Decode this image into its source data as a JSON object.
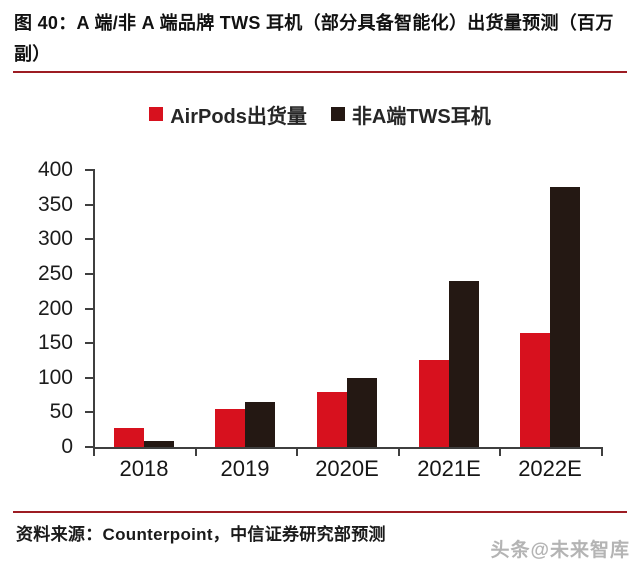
{
  "figure": {
    "title": "图 40：A 端/非 A 端品牌 TWS 耳机（部分具备智能化）出货量预测（百万副）",
    "source": "资料来源：Counterpoint，中信证券研究部预测",
    "watermark": "头条@未来智库",
    "accent_line_color": "#9d1c23"
  },
  "chart_data": {
    "type": "bar",
    "title": "A端/非A端品牌TWS耳机出货量预测（百万副）",
    "categories": [
      "2018",
      "2019",
      "2020E",
      "2021E",
      "2022E"
    ],
    "series": [
      {
        "name": "AirPods出货量",
        "color": "#d7111e",
        "values": [
          27,
          55,
          80,
          125,
          165
        ]
      },
      {
        "name": "非A端TWS耳机",
        "color": "#241813",
        "values": [
          8,
          65,
          100,
          240,
          375
        ]
      }
    ],
    "ylim": [
      0,
      400
    ],
    "yticks": [
      0,
      50,
      100,
      150,
      200,
      250,
      300,
      350,
      400
    ],
    "xlabel": "",
    "ylabel": "",
    "grid": false,
    "legend_position": "top",
    "axis_color": "#3f3f3f"
  }
}
